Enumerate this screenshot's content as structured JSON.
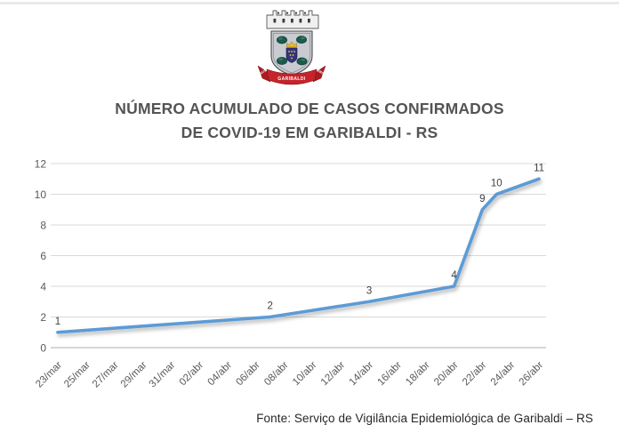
{
  "page": {
    "background": "#ffffff",
    "top_border_color": "#e9e9e9"
  },
  "emblem": {
    "alt": "Brasão de Garibaldi",
    "ribbon_left": "1870",
    "ribbon_center": "GARIBALDI",
    "ribbon_right": "1900",
    "colors": {
      "crown": "#f0f0f0",
      "crown_outline": "#5a5a5a",
      "shield": "#c9cbd1",
      "shield_outline": "#4a4a4a",
      "grapes": "#1c5a4e",
      "inner_shield": "#34347e",
      "gold": "#e8bf2b",
      "ribbon": "#c5242b",
      "ribbon_dark": "#a81c22"
    }
  },
  "title": {
    "line1": "NÚMERO ACUMULADO DE CASOS CONFIRMADOS",
    "line2": "DE COVID-19 EM GARIBALDI - RS",
    "color": "#545454"
  },
  "footer": {
    "source": "Fonte: Serviço de Vigilância Epidemiológica de Garibaldi – RS"
  },
  "chart_data": {
    "type": "line",
    "title": "Número acumulado de casos confirmados de COVID-19 em Garibaldi - RS",
    "xlabel": "",
    "ylabel": "",
    "ylim": [
      0,
      12
    ],
    "y_ticks": [
      0,
      2,
      4,
      6,
      8,
      10,
      12
    ],
    "grid": true,
    "legend": "none",
    "x_tick_labels": [
      "23/mar",
      "25/mar",
      "27/mar",
      "29/mar",
      "31/mar",
      "02/abr",
      "04/abr",
      "06/abr",
      "08/abr",
      "10/abr",
      "12/abr",
      "14/abr",
      "16/abr",
      "18/abr",
      "20/abr",
      "22/abr",
      "24/abr",
      "26/abr"
    ],
    "x_axis_days_total": 35,
    "points": [
      {
        "date": "23/mar",
        "day": 0,
        "value": 1
      },
      {
        "date": "07/abr",
        "day": 15,
        "value": 2
      },
      {
        "date": "14/abr",
        "day": 22,
        "value": 3
      },
      {
        "date": "20/abr",
        "day": 28,
        "value": 4
      },
      {
        "date": "22/abr",
        "day": 30,
        "value": 9
      },
      {
        "date": "23/abr",
        "day": 31,
        "value": 10
      },
      {
        "date": "26/abr",
        "day": 34,
        "value": 11
      }
    ],
    "data_labels": [
      1,
      2,
      3,
      4,
      9,
      10,
      11
    ],
    "colors": {
      "line": "#5b9bd5",
      "gridline": "#d9d9d9",
      "axis_line": "#bfbfbf",
      "axis_text": "#595959",
      "data_label_text": "#404040"
    }
  }
}
